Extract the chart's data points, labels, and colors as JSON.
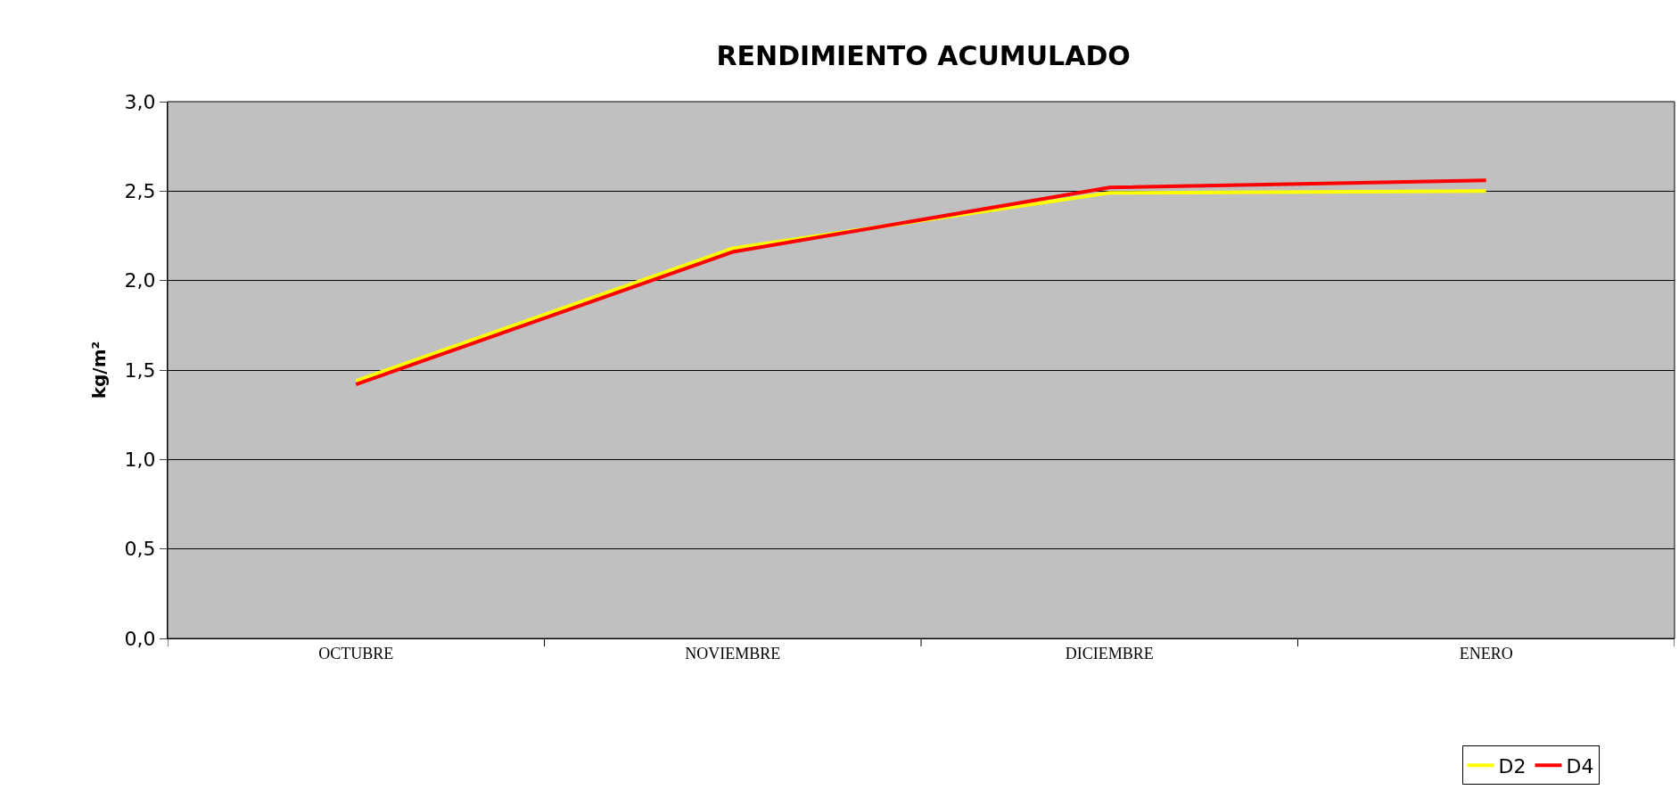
{
  "chart_data": {
    "type": "line",
    "title": "RENDIMIENTO ACUMULADO",
    "ylabel": "kg/m²",
    "categories": [
      "OCTUBRE",
      "NOVIEMBRE",
      "DICIEMBRE",
      "ENERO"
    ],
    "series": [
      {
        "name": "D2",
        "color": "#ffff00",
        "values": [
          1.44,
          2.18,
          2.49,
          2.5
        ]
      },
      {
        "name": "D4",
        "color": "#ff0000",
        "values": [
          1.42,
          2.16,
          2.52,
          2.56
        ]
      }
    ],
    "ylim": [
      0,
      3
    ],
    "yticks": [
      {
        "value": 0,
        "label": "0,0"
      },
      {
        "value": 0.5,
        "label": "0,5"
      },
      {
        "value": 1,
        "label": "1,0"
      },
      {
        "value": 1.5,
        "label": "1,5"
      },
      {
        "value": 2,
        "label": "2,0"
      },
      {
        "value": 2.5,
        "label": "2,5"
      },
      {
        "value": 3,
        "label": "3,0"
      }
    ],
    "grid": "y",
    "legend": "bottom right",
    "marker": "none",
    "line_style": "solid"
  }
}
